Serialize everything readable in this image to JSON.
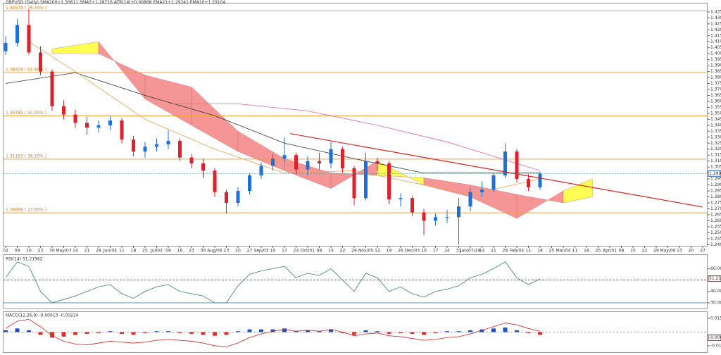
{
  "chart_data": [
    {
      "type": "candlestick",
      "title": "GBPUSD (Daily) SMA200+1.30611 SMA5+1.28716 ATR(14)+0.00868 EMA21+1.29241 EMA10+1.29104",
      "x_labels": [
        "02",
        "09",
        "16",
        "23",
        "30",
        "May/07",
        "14",
        "21",
        "28",
        "Jun/04",
        "11",
        "18",
        "25",
        "Jul/02",
        "09",
        "16",
        "23",
        "30",
        "Aug/06",
        "13",
        "20",
        "27",
        "Sep/03",
        "10",
        "17",
        "24",
        "Oct/01",
        "08",
        "15",
        "22",
        "29",
        "Nov/05",
        "12",
        "19",
        "26",
        "Dec/03",
        "10",
        "17",
        "24",
        "31",
        "Jan/07/19",
        "14",
        "21",
        "28",
        "Feb/04",
        "11",
        "18",
        "25",
        "Mar/04",
        "11",
        "18",
        "25",
        "Apr/01",
        "08",
        "15",
        "22",
        "29",
        "May/06",
        "13",
        "20",
        "27"
      ],
      "open": [
        1.402,
        1.409,
        1.424,
        1.401,
        1.385,
        1.356,
        1.349,
        1.342,
        1.338,
        1.34,
        1.344,
        1.328,
        1.318,
        1.322,
        1.324,
        1.327,
        1.313,
        1.308,
        1.302,
        1.284,
        1.275,
        1.285,
        1.298,
        1.306,
        1.312,
        1.315,
        1.303,
        1.31,
        1.308,
        1.32,
        1.304,
        1.279,
        1.31,
        1.308,
        1.278,
        1.279,
        1.267,
        1.26,
        1.263,
        1.263,
        1.272,
        1.284,
        1.286,
        1.298,
        1.318,
        1.295,
        1.288
      ],
      "high": [
        1.4145,
        1.429,
        1.4376,
        1.406,
        1.387,
        1.361,
        1.353,
        1.347,
        1.344,
        1.348,
        1.346,
        1.331,
        1.326,
        1.329,
        1.336,
        1.329,
        1.316,
        1.312,
        1.304,
        1.286,
        1.288,
        1.3,
        1.309,
        1.316,
        1.33,
        1.317,
        1.314,
        1.317,
        1.326,
        1.322,
        1.306,
        1.317,
        1.313,
        1.31,
        1.283,
        1.281,
        1.27,
        1.266,
        1.269,
        1.279,
        1.287,
        1.293,
        1.3,
        1.325,
        1.32,
        1.299,
        1.301
      ],
      "low": [
        1.399,
        1.406,
        1.399,
        1.382,
        1.352,
        1.345,
        1.338,
        1.332,
        1.334,
        1.336,
        1.325,
        1.314,
        1.313,
        1.318,
        1.32,
        1.31,
        1.304,
        1.296,
        1.28,
        1.266,
        1.272,
        1.282,
        1.295,
        1.302,
        1.309,
        1.299,
        1.298,
        1.303,
        1.304,
        1.3,
        1.273,
        1.277,
        1.302,
        1.274,
        1.272,
        1.264,
        1.248,
        1.256,
        1.258,
        1.24,
        1.268,
        1.28,
        1.284,
        1.296,
        1.292,
        1.285,
        1.286
      ],
      "close": [
        1.409,
        1.424,
        1.401,
        1.385,
        1.356,
        1.349,
        1.342,
        1.338,
        1.34,
        1.344,
        1.328,
        1.318,
        1.322,
        1.324,
        1.327,
        1.313,
        1.308,
        1.302,
        1.284,
        1.275,
        1.285,
        1.298,
        1.306,
        1.312,
        1.315,
        1.303,
        1.31,
        1.308,
        1.32,
        1.304,
        1.279,
        1.31,
        1.308,
        1.278,
        1.279,
        1.267,
        1.26,
        1.263,
        1.263,
        1.272,
        1.284,
        1.286,
        1.298,
        1.318,
        1.295,
        1.288,
        1.2995
      ],
      "up_color": "#1e6fd9",
      "down_color": "#e0202a",
      "ylim": [
        1.239,
        1.442
      ],
      "yticks": [
        {
          "value": 1.24,
          "label": "1.24000"
        },
        {
          "value": 1.245,
          "label": "1.24500"
        },
        {
          "value": 1.25,
          "label": "1.25000"
        },
        {
          "value": 1.255,
          "label": "1.25500"
        },
        {
          "value": 1.26,
          "label": "1.26000"
        },
        {
          "value": 1.265,
          "label": "1.26500"
        },
        {
          "value": 1.27,
          "label": "1.27000"
        },
        {
          "value": 1.275,
          "label": "1.27500"
        },
        {
          "value": 1.28,
          "label": "1.28000"
        },
        {
          "value": 1.285,
          "label": "1.28500"
        },
        {
          "value": 1.29,
          "label": "1.29000"
        },
        {
          "value": 1.295,
          "label": "1.29500"
        },
        {
          "value": 1.3,
          "label": "1.30000"
        },
        {
          "value": 1.305,
          "label": "1.30500"
        },
        {
          "value": 1.31,
          "label": "1.31000"
        },
        {
          "value": 1.315,
          "label": "1.31500"
        },
        {
          "value": 1.32,
          "label": "1.32000"
        },
        {
          "value": 1.325,
          "label": "1.32500"
        },
        {
          "value": 1.33,
          "label": "1.33000"
        },
        {
          "value": 1.335,
          "label": "1.33500"
        },
        {
          "value": 1.34,
          "label": "1.34000"
        },
        {
          "value": 1.345,
          "label": "1.34500"
        },
        {
          "value": 1.35,
          "label": "1.35000"
        },
        {
          "value": 1.355,
          "label": "1.35500"
        },
        {
          "value": 1.36,
          "label": "1.36000"
        },
        {
          "value": 1.365,
          "label": "1.36500"
        },
        {
          "value": 1.37,
          "label": "1.37000"
        },
        {
          "value": 1.375,
          "label": "1.37500"
        },
        {
          "value": 1.38,
          "label": "1.38000"
        },
        {
          "value": 1.385,
          "label": "1.38500"
        },
        {
          "value": 1.39,
          "label": "1.39000"
        },
        {
          "value": 1.395,
          "label": "1.39500"
        },
        {
          "value": 1.4,
          "label": "1.40000"
        },
        {
          "value": 1.405,
          "label": "1.40500"
        },
        {
          "value": 1.41,
          "label": "1.41000"
        },
        {
          "value": 1.415,
          "label": "1.41500"
        },
        {
          "value": 1.42,
          "label": "1.42000"
        },
        {
          "value": 1.425,
          "label": "1.42500"
        },
        {
          "value": 1.43,
          "label": "1.43000"
        },
        {
          "value": 1.435,
          "label": "1.43500"
        }
      ],
      "fib_levels": [
        {
          "value": 1.43578,
          "label": "1.43578 ( 76.40% )"
        },
        {
          "value": 1.38418,
          "label": "1.38418 ( 61.80% )"
        },
        {
          "value": 1.34789,
          "label": "1.34789 ( 50.00% )"
        },
        {
          "value": 1.31163,
          "label": "1.31163 ( 38.20% )"
        },
        {
          "value": 1.26668,
          "label": "1.26668 ( 23.60% )"
        }
      ],
      "fib_color": "#f0a040",
      "cloud": {
        "x": [
          4,
          8,
          12,
          16,
          20,
          24,
          28,
          32,
          36,
          40,
          44,
          48,
          50.5
        ],
        "span_a": [
          1.404,
          1.41,
          1.362,
          1.34,
          1.318,
          1.302,
          1.287,
          1.31,
          1.29,
          1.28,
          1.262,
          1.285,
          1.295
        ],
        "span_b": [
          1.4,
          1.4,
          1.382,
          1.372,
          1.335,
          1.312,
          1.3,
          1.298,
          1.296,
          1.29,
          1.282,
          1.275,
          1.28
        ],
        "bull_color": "#ffff40",
        "bear_color": "#f58a8a"
      },
      "lines": [
        {
          "color": "#333333",
          "x": [
            0,
            6,
            12,
            18,
            24,
            30,
            36,
            42,
            46
          ],
          "values": [
            1.375,
            1.384,
            1.365,
            1.348,
            1.325,
            1.312,
            1.3,
            1.3,
            1.3
          ]
        },
        {
          "color": "#e060b0",
          "x": [
            14,
            20,
            26,
            32,
            38,
            42,
            46
          ],
          "values": [
            1.358,
            1.358,
            1.352,
            1.34,
            1.326,
            1.314,
            1.302
          ]
        },
        {
          "color": "#f0a050",
          "x": [
            2,
            6,
            12,
            18,
            24,
            30,
            36,
            40,
            46
          ],
          "values": [
            1.41,
            1.385,
            1.345,
            1.32,
            1.3,
            1.302,
            1.29,
            1.282,
            1.295
          ]
        }
      ],
      "trendline": {
        "color": "#e02020",
        "x": [
          24.5,
          60
        ],
        "values": [
          1.333,
          1.2715
        ]
      },
      "last_price": {
        "value": 1.29963,
        "label": "1.29963"
      }
    },
    {
      "type": "line",
      "title": "RSI(14) 51.21962",
      "values": [
        52,
        66,
        62,
        40,
        30,
        33,
        36,
        40,
        44,
        46,
        38,
        34,
        40,
        44,
        46,
        40,
        38,
        36,
        30,
        30,
        45,
        55,
        58,
        60,
        62,
        52,
        56,
        54,
        60,
        50,
        40,
        56,
        52,
        40,
        44,
        38,
        35,
        40,
        42,
        45,
        52,
        55,
        60,
        66,
        52,
        46,
        51
      ],
      "color": "#3a7a7a",
      "ylim": [
        25,
        72
      ],
      "yticks": [
        {
          "value": 30,
          "label": "30.00000"
        },
        {
          "value": 40,
          "label": "40.00000"
        },
        {
          "value": 60,
          "label": "60.00000"
        }
      ],
      "levels": [
        {
          "value": 50,
          "color": "#e02020"
        },
        {
          "value": 30,
          "color": "#3a8fd0"
        }
      ],
      "last_value": {
        "value": 51.21962,
        "label": "51.21962"
      }
    },
    {
      "type": "bar",
      "title": "MACD(12,26,9) -0.00613 -0.00224",
      "values": [
        0.002,
        0.004,
        0.002,
        -0.003,
        -0.006,
        -0.005,
        -0.003,
        -0.002,
        -0.001,
        0.001,
        -0.002,
        -0.003,
        -0.001,
        0.001,
        0.001,
        -0.001,
        -0.002,
        -0.003,
        -0.004,
        -0.003,
        0.001,
        0.003,
        0.003,
        0.003,
        0.004,
        0.001,
        0.002,
        0.001,
        0.003,
        -0.001,
        -0.003,
        0.002,
        0.001,
        -0.002,
        -0.001,
        -0.002,
        -0.003,
        -0.001,
        0.001,
        0.001,
        0.002,
        0.003,
        0.004,
        0.005,
        0.002,
        -0.001,
        -0.003
      ],
      "pos_color": "#2050c0",
      "neg_color": "#e03030",
      "line": {
        "color": "#d02020",
        "values": [
          0.004,
          0.012,
          0.014,
          0.006,
          -0.004,
          -0.01,
          -0.013,
          -0.014,
          -0.012,
          -0.01,
          -0.011,
          -0.012,
          -0.011,
          -0.009,
          -0.008,
          -0.009,
          -0.01,
          -0.012,
          -0.015,
          -0.016,
          -0.012,
          -0.006,
          -0.002,
          0.001,
          0.003,
          0.001,
          0.002,
          0.001,
          0.003,
          0.0,
          -0.004,
          -0.002,
          -0.001,
          -0.004,
          -0.005,
          -0.007,
          -0.009,
          -0.008,
          -0.006,
          -0.005,
          -0.002,
          0.002,
          0.006,
          0.01,
          0.008,
          0.004,
          0.001
        ]
      },
      "ylim": [
        -0.022,
        0.022
      ],
      "yticks": [
        {
          "value": 0.015,
          "label": "0.01500"
        },
        {
          "value": -0.015,
          "label": "-0.01500"
        }
      ],
      "last_value": {
        "value": -0.00613,
        "label": "-0.00613"
      }
    }
  ]
}
